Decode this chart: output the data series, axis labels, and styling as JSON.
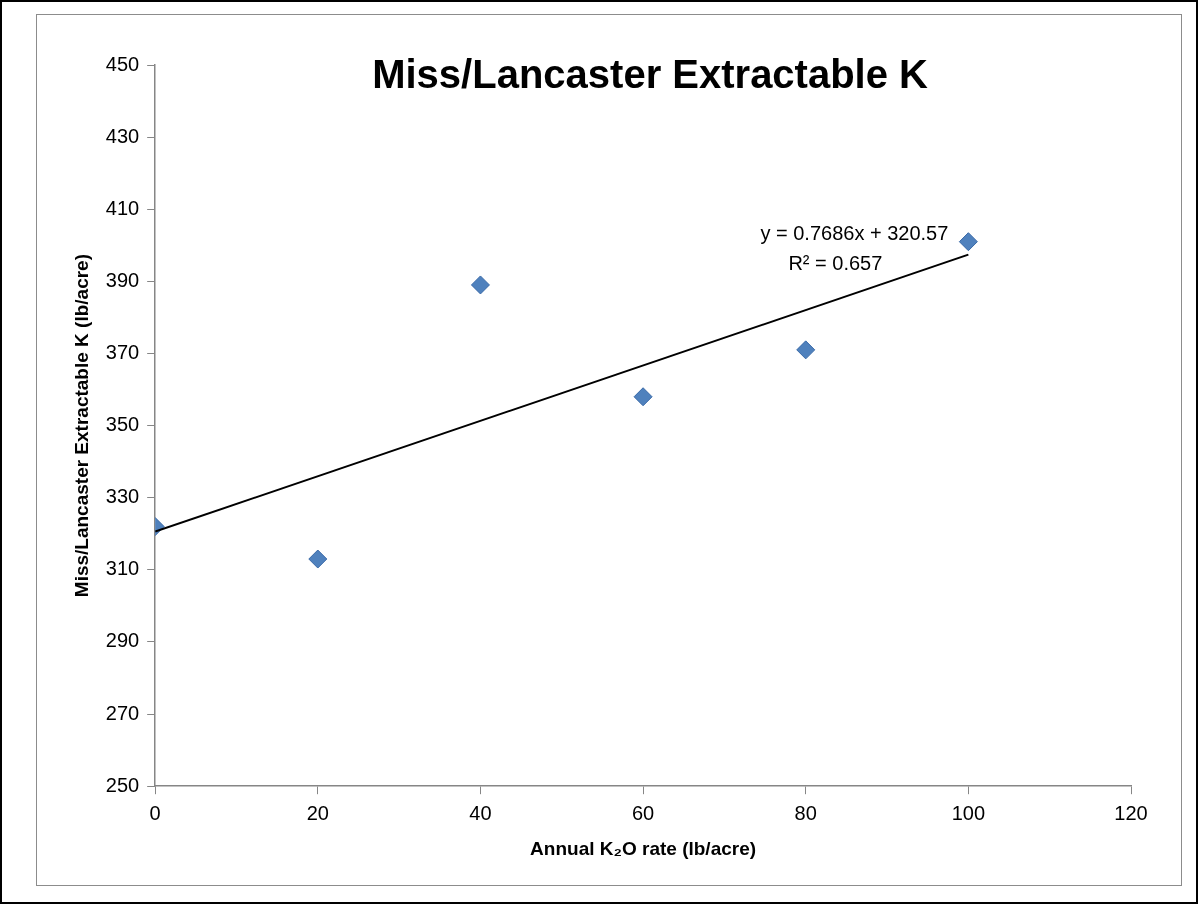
{
  "chart_data": {
    "type": "scatter",
    "title": "Miss/Lancaster Extractable K",
    "xlabel": "Annual K₂O rate (lb/acre)",
    "ylabel": "Miss/Lancaster Extractable K (lb/acre)",
    "x": [
      0,
      20,
      40,
      60,
      80,
      100
    ],
    "series": [
      {
        "color": "#4f81bd",
        "values": [
          322,
          313,
          389,
          358,
          371,
          401
        ],
        "marker": "diamond"
      },
      {
        "type": "line",
        "color": "#000000",
        "x": [
          0,
          100
        ],
        "values": [
          320.6,
          397.4
        ],
        "marker": "none"
      }
    ],
    "annotations": [
      "y = 0.7686x + 320.57",
      "R² = 0.657"
    ],
    "xlim": [
      0,
      120
    ],
    "xticks": [
      0,
      20,
      40,
      60,
      80,
      100,
      120
    ],
    "ylim": [
      250,
      450
    ],
    "yticks": [
      250,
      270,
      290,
      310,
      330,
      350,
      370,
      390,
      410,
      430,
      450
    ],
    "grid": false,
    "legend": false
  }
}
